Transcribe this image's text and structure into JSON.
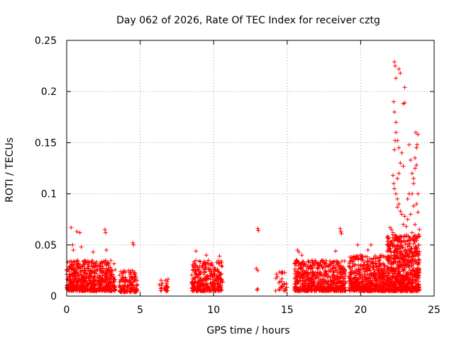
{
  "chart_data": {
    "type": "scatter",
    "title": "Day 062 of 2026, Rate Of TEC Index for receiver cztg",
    "xlabel": "GPS time / hours",
    "ylabel": "ROTI / TECUs",
    "xlim": [
      0,
      25
    ],
    "ylim": [
      0,
      0.25
    ],
    "xticks": [
      0,
      5,
      10,
      15,
      20,
      25
    ],
    "xtick_labels": [
      "0",
      "5",
      "10",
      "15",
      "20",
      "25"
    ],
    "yticks": [
      0,
      0.05,
      0.1,
      0.15,
      0.2,
      0.25
    ],
    "ytick_labels": [
      "0",
      "0.05",
      "0.1",
      "0.15",
      "0.2",
      "0.25"
    ],
    "grid": true,
    "marker": "+",
    "color": "#ff0000",
    "clusters": [
      {
        "x": [
          0.0,
          3.3
        ],
        "y": [
          0.005,
          0.035
        ],
        "density": 1.0
      },
      {
        "x": [
          3.6,
          4.8
        ],
        "y": [
          0.004,
          0.025
        ],
        "density": 0.7
      },
      {
        "x": [
          6.3,
          6.9
        ],
        "y": [
          0.005,
          0.018
        ],
        "density": 0.25
      },
      {
        "x": [
          8.5,
          10.6
        ],
        "y": [
          0.005,
          0.035
        ],
        "density": 0.8
      },
      {
        "x": [
          12.8,
          13.0
        ],
        "y": [
          0.006,
          0.01
        ],
        "density": 0.06
      },
      {
        "x": [
          14.2,
          15.0
        ],
        "y": [
          0.005,
          0.025
        ],
        "density": 0.2
      },
      {
        "x": [
          15.5,
          19.0
        ],
        "y": [
          0.005,
          0.035
        ],
        "density": 1.0
      },
      {
        "x": [
          19.2,
          21.8
        ],
        "y": [
          0.005,
          0.04
        ],
        "density": 1.2
      },
      {
        "x": [
          21.8,
          24.0
        ],
        "y": [
          0.005,
          0.06
        ],
        "density": 1.8
      }
    ],
    "points": [
      [
        0.3,
        0.067
      ],
      [
        0.4,
        0.05
      ],
      [
        0.45,
        0.045
      ],
      [
        0.7,
        0.063
      ],
      [
        0.9,
        0.062
      ],
      [
        1.0,
        0.048
      ],
      [
        1.8,
        0.043
      ],
      [
        2.6,
        0.065
      ],
      [
        2.65,
        0.062
      ],
      [
        2.7,
        0.045
      ],
      [
        4.5,
        0.052
      ],
      [
        4.55,
        0.05
      ],
      [
        8.8,
        0.044
      ],
      [
        9.5,
        0.04
      ],
      [
        10.4,
        0.039
      ],
      [
        13.0,
        0.066
      ],
      [
        13.05,
        0.064
      ],
      [
        12.9,
        0.027
      ],
      [
        13.0,
        0.025
      ],
      [
        15.7,
        0.045
      ],
      [
        15.8,
        0.043
      ],
      [
        16.0,
        0.04
      ],
      [
        18.3,
        0.044
      ],
      [
        18.6,
        0.066
      ],
      [
        18.65,
        0.063
      ],
      [
        18.7,
        0.061
      ],
      [
        19.8,
        0.05
      ],
      [
        20.5,
        0.045
      ],
      [
        20.7,
        0.05
      ],
      [
        21.8,
        0.05
      ],
      [
        22.0,
        0.067
      ],
      [
        22.1,
        0.065
      ],
      [
        22.2,
        0.062
      ],
      [
        22.3,
        0.229
      ],
      [
        22.35,
        0.225
      ],
      [
        22.4,
        0.213
      ],
      [
        22.6,
        0.222
      ],
      [
        22.7,
        0.218
      ],
      [
        23.0,
        0.204
      ],
      [
        22.9,
        0.188
      ],
      [
        23.0,
        0.189
      ],
      [
        22.25,
        0.19
      ],
      [
        22.3,
        0.18
      ],
      [
        22.4,
        0.17
      ],
      [
        22.35,
        0.152
      ],
      [
        22.3,
        0.143
      ],
      [
        22.5,
        0.152
      ],
      [
        22.4,
        0.16
      ],
      [
        22.6,
        0.145
      ],
      [
        22.7,
        0.13
      ],
      [
        22.8,
        0.14
      ],
      [
        22.9,
        0.127
      ],
      [
        22.6,
        0.12
      ],
      [
        22.5,
        0.115
      ],
      [
        22.2,
        0.118
      ],
      [
        22.25,
        0.11
      ],
      [
        22.3,
        0.105
      ],
      [
        22.4,
        0.1
      ],
      [
        22.5,
        0.095
      ],
      [
        22.6,
        0.09
      ],
      [
        22.5,
        0.087
      ],
      [
        22.7,
        0.083
      ],
      [
        22.8,
        0.08
      ],
      [
        23.0,
        0.078
      ],
      [
        22.9,
        0.07
      ],
      [
        23.1,
        0.068
      ],
      [
        23.2,
        0.075
      ],
      [
        23.2,
        0.095
      ],
      [
        23.3,
        0.1
      ],
      [
        23.5,
        0.1
      ],
      [
        23.6,
        0.11
      ],
      [
        23.5,
        0.12
      ],
      [
        23.7,
        0.125
      ],
      [
        23.8,
        0.128
      ],
      [
        23.8,
        0.145
      ],
      [
        23.85,
        0.148
      ],
      [
        23.75,
        0.16
      ],
      [
        23.9,
        0.158
      ],
      [
        23.7,
        0.135
      ],
      [
        23.6,
        0.115
      ],
      [
        23.3,
        0.148
      ],
      [
        23.4,
        0.133
      ],
      [
        23.9,
        0.1
      ],
      [
        23.8,
        0.09
      ],
      [
        23.6,
        0.088
      ],
      [
        23.4,
        0.08
      ],
      [
        23.9,
        0.082
      ],
      [
        23.7,
        0.07
      ],
      [
        24.0,
        0.065
      ],
      [
        23.95,
        0.06
      ],
      [
        23.5,
        0.062
      ],
      [
        23.1,
        0.058
      ]
    ]
  }
}
